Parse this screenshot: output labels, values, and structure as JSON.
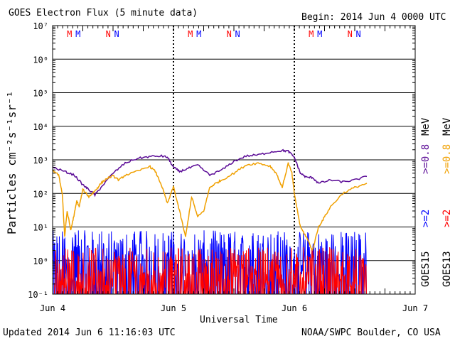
{
  "header": {
    "title": "GOES Electron Flux (5 minute data)",
    "begin": "Begin: 2014 Jun 4 0000 UTC"
  },
  "footer": {
    "updated": "Updated 2014 Jun  6 11:16:03 UTC",
    "credit": "NOAA/SWPC Boulder, CO USA"
  },
  "colors": {
    "goes15_08": "#5a0a96",
    "goes13_08": "#f0a000",
    "goes15_2": "#0000ff",
    "goes13_2": "#ff0000"
  },
  "chart_data": {
    "type": "line",
    "xlabel": "Universal Time",
    "ylabel": "Particles cm⁻²s⁻¹sr⁻¹",
    "yscale": "log",
    "ylim": [
      0.1,
      10000000
    ],
    "xlim": [
      0,
      3
    ],
    "x_ticks": [
      "Jun 4",
      "Jun 5",
      "Jun 6",
      "Jun 7"
    ],
    "y_ticks": [
      "10⁻¹",
      "10⁰",
      "10¹",
      "10²",
      "10³",
      "10⁴",
      "10⁵",
      "10⁶",
      "10⁷"
    ],
    "threshold": 1000,
    "day_markers": [
      {
        "day": 0,
        "labels": [
          "M",
          "M",
          "N",
          "N"
        ]
      },
      {
        "day": 1,
        "labels": [
          "M",
          "M",
          "N",
          "N"
        ]
      },
      {
        "day": 2,
        "labels": [
          "M",
          "M",
          "N",
          "N"
        ]
      }
    ],
    "right_labels": {
      "goes15": "GOES15",
      "goes13": "GOES13",
      "goes15_2": ">=2",
      "goes15_08": ">=0.8",
      "goes13_2": ">=2",
      "goes13_08": ">=0.8",
      "unit": "MeV"
    },
    "series": [
      {
        "key": "goes15_08",
        "x": [
          0.0,
          0.1,
          0.18,
          0.25,
          0.3,
          0.35,
          0.4,
          0.5,
          0.6,
          0.7,
          0.8,
          0.9,
          0.95,
          1.0,
          1.05,
          1.12,
          1.2,
          1.3,
          1.4,
          1.5,
          1.6,
          1.7,
          1.8,
          1.9,
          1.95,
          2.0,
          2.05,
          2.1,
          2.15,
          2.2,
          2.3,
          2.4,
          2.5,
          2.6
        ],
        "y": [
          600,
          450,
          350,
          180,
          130,
          90,
          150,
          400,
          800,
          1100,
          1250,
          1300,
          1200,
          600,
          450,
          550,
          700,
          350,
          500,
          900,
          1300,
          1400,
          1700,
          1900,
          1800,
          1200,
          400,
          300,
          300,
          200,
          250,
          220,
          250,
          320
        ]
      },
      {
        "key": "goes13_08",
        "x": [
          0.0,
          0.05,
          0.08,
          0.1,
          0.12,
          0.15,
          0.18,
          0.2,
          0.22,
          0.25,
          0.3,
          0.33,
          0.36,
          0.4,
          0.45,
          0.5,
          0.55,
          0.6,
          0.7,
          0.8,
          0.85,
          0.9,
          0.95,
          1.0,
          1.05,
          1.1,
          1.15,
          1.2,
          1.25,
          1.3,
          1.35,
          1.4,
          1.5,
          1.6,
          1.7,
          1.8,
          1.85,
          1.9,
          1.95,
          1.98,
          2.0,
          2.05,
          2.1,
          2.15,
          2.2,
          2.25,
          2.3,
          2.4,
          2.5,
          2.6
        ],
        "y": [
          500,
          350,
          100,
          5,
          30,
          8,
          25,
          60,
          40,
          130,
          80,
          100,
          130,
          200,
          280,
          330,
          250,
          350,
          450,
          650,
          450,
          180,
          50,
          160,
          30,
          5,
          80,
          20,
          30,
          150,
          200,
          250,
          400,
          700,
          800,
          650,
          400,
          150,
          800,
          400,
          100,
          10,
          5,
          2,
          10,
          20,
          40,
          100,
          150,
          200
        ]
      }
    ],
    "noise_series": [
      {
        "key": "goes15_2",
        "x_end": 2.6,
        "y_floor": 0.1,
        "y_min": 0.3,
        "y_max": 8
      },
      {
        "key": "goes13_2",
        "x_end": 2.6,
        "y_floor": 0.1,
        "y_min": 0.15,
        "y_max": 2.5
      }
    ]
  }
}
